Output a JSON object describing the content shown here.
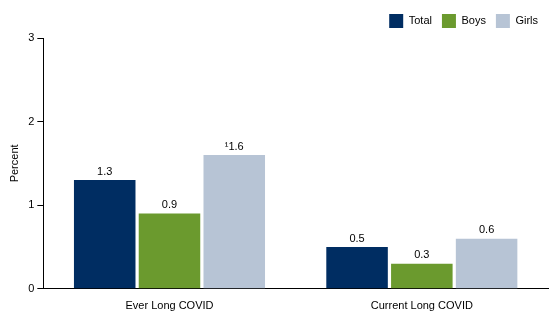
{
  "chart_data": {
    "type": "bar",
    "categories": [
      "Ever Long COVID",
      "Current Long COVID"
    ],
    "series": [
      {
        "name": "Total",
        "color": "#002d62",
        "values": [
          1.3,
          0.5
        ]
      },
      {
        "name": "Boys",
        "color": "#6b9a2e",
        "values": [
          0.9,
          0.3
        ]
      },
      {
        "name": "Girls",
        "color": "#b7c4d5",
        "values": [
          1.6,
          0.6
        ],
        "value_labels": [
          "¹1.6",
          "0.6"
        ]
      }
    ],
    "y_label": "Percent",
    "ylim": [
      0,
      3
    ],
    "yticks": [
      0,
      1,
      2,
      3
    ],
    "grid": false,
    "legend": "top-right",
    "data_labels": true
  }
}
